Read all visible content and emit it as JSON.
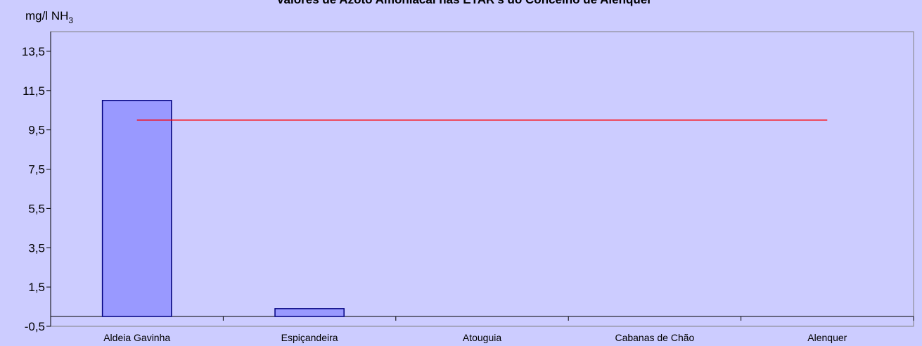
{
  "chart_data": {
    "type": "bar",
    "title": "Valores de Azoto Amoniacal nas ETAR's do Concelho de Alenquer",
    "ylabel": "mg/l NH",
    "ylabel_subscript": "3",
    "xlabel": "",
    "categories": [
      "Aldeia Gavinha",
      "Espiçandeira",
      "Atouguia",
      "Cabanas de Chão",
      "Alenquer"
    ],
    "series": [
      {
        "values": [
          11.0,
          0.4,
          0.0,
          0.0,
          0.0
        ],
        "color": "#9999ff",
        "border": "#000080"
      }
    ],
    "reference_line": {
      "value": 10.0,
      "color": "#ff0000"
    },
    "ylim": [
      -0.5,
      14.5
    ],
    "yticks": [
      -0.5,
      1.5,
      3.5,
      5.5,
      7.5,
      9.5,
      11.5,
      13.5
    ],
    "ytick_labels": [
      "-0,5",
      "1,5",
      "3,5",
      "5,5",
      "7,5",
      "9,5",
      "11,5",
      "13,5"
    ],
    "grid": false,
    "legend": "none"
  },
  "colors": {
    "background": "#ccccff",
    "bar_fill": "#9999ff",
    "bar_border": "#000080",
    "reference": "#ff0000"
  }
}
